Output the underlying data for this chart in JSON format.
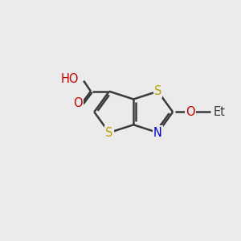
{
  "bg_color": "#ebebeb",
  "bond_color": "#3a3a3a",
  "bond_lw": 1.8,
  "atom_colors": {
    "S": "#b8a000",
    "N": "#0000cc",
    "O": "#cc0000",
    "H": "#4a8a8a",
    "C": "#3a3a3a"
  },
  "font_size": 10.5,
  "fig_size": [
    3.0,
    3.0
  ],
  "dpi": 100,
  "xlim": [
    0,
    10
  ],
  "ylim": [
    0,
    10
  ]
}
